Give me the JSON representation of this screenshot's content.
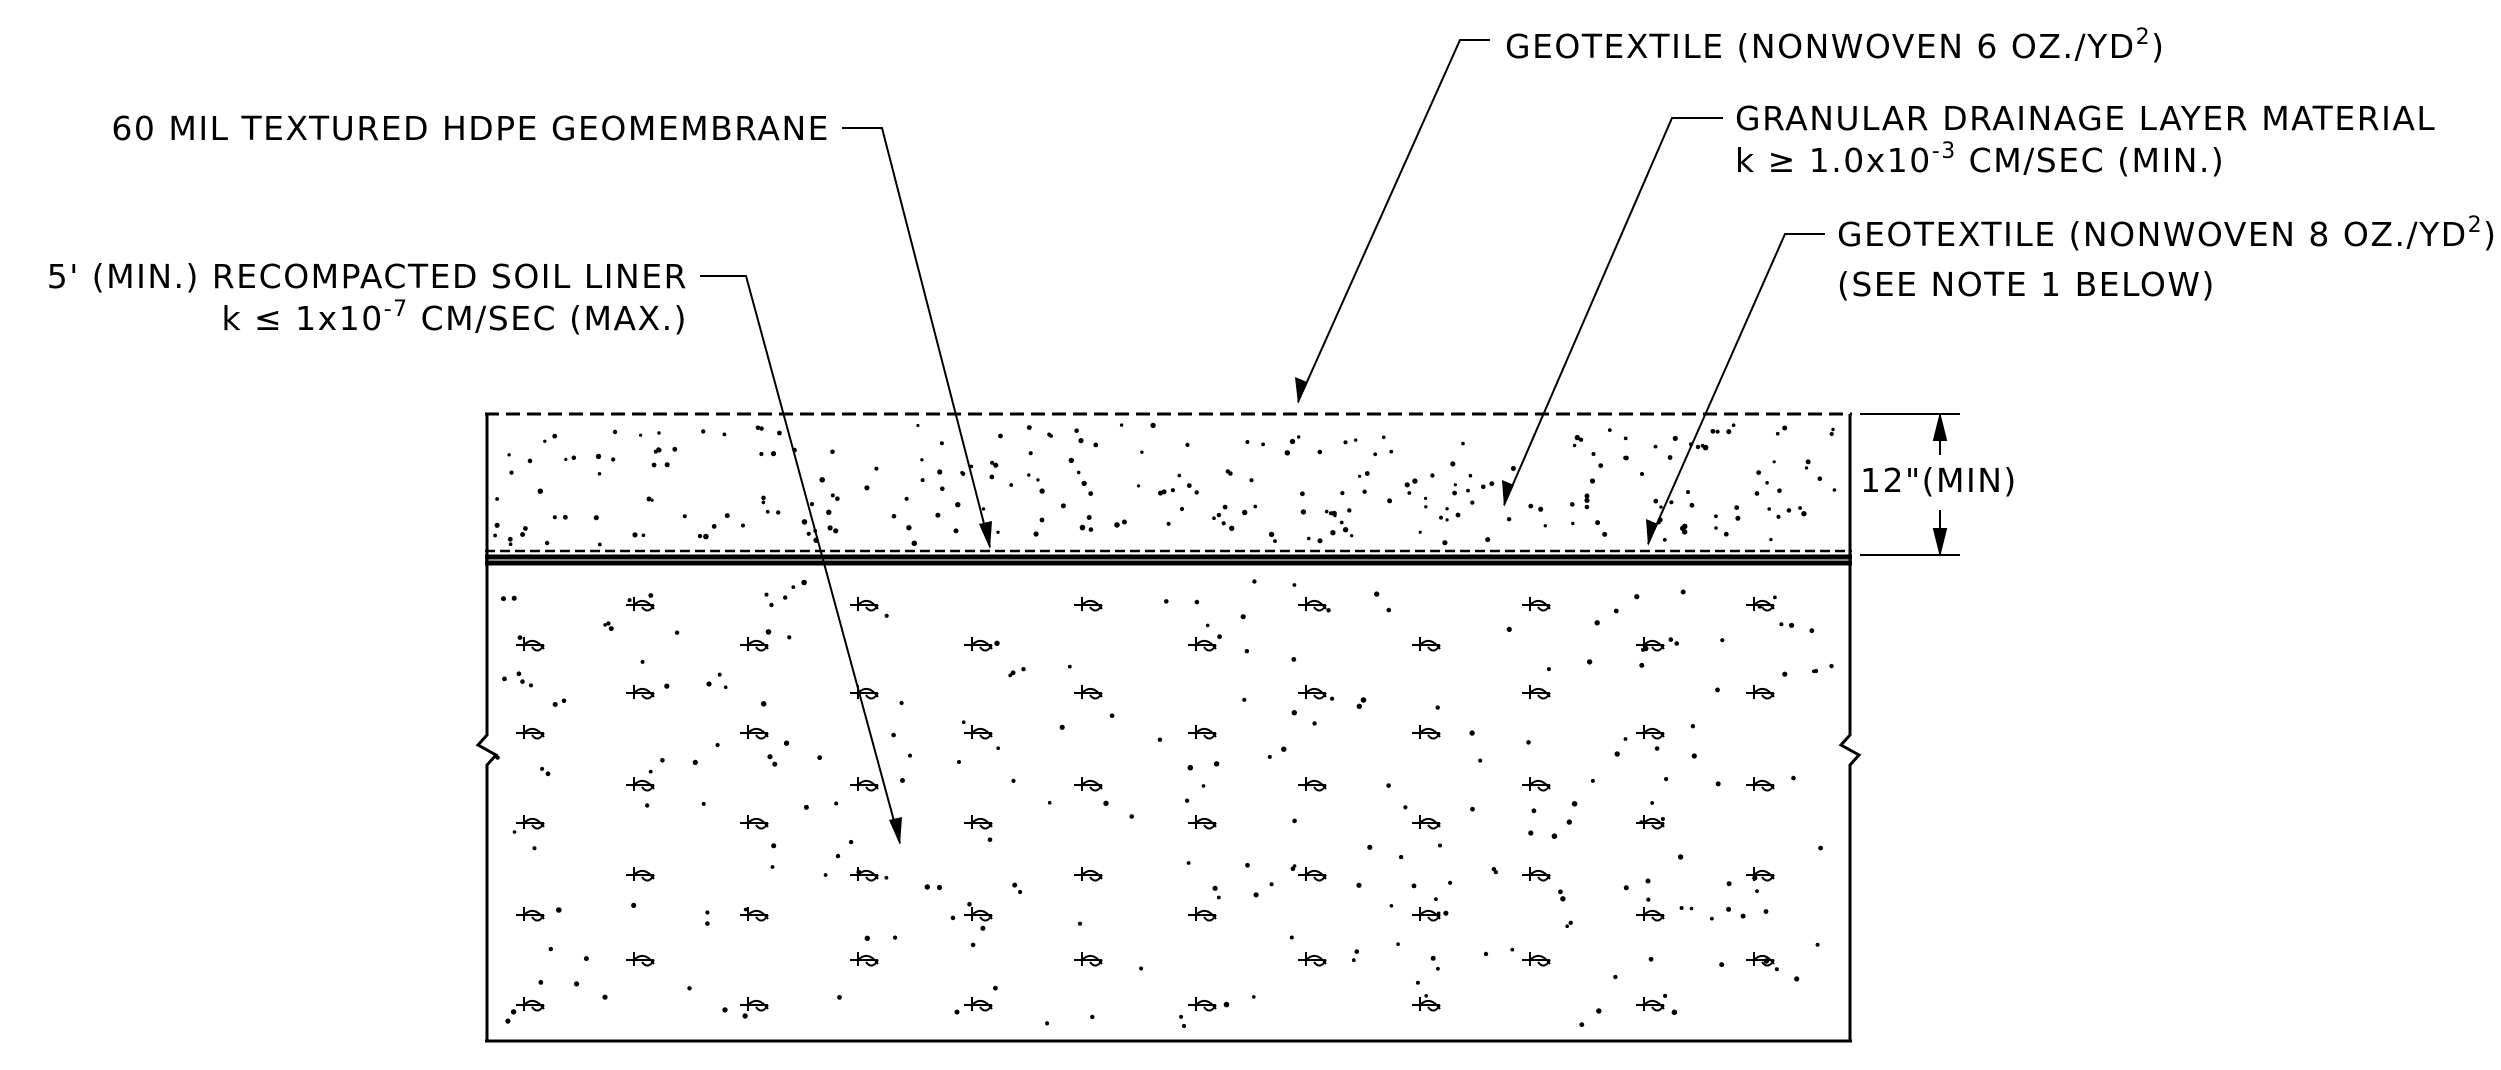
{
  "labels": {
    "geotextile_top": {
      "text": "GEOTEXTILE (NONWOVEN 6 OZ./YD",
      "sup": "2",
      "tail": ")"
    },
    "geomembrane": {
      "text": "60 MIL TEXTURED HDPE GEOMEMBRANE"
    },
    "drainage": {
      "line1": "GRANULAR DRAINAGE LAYER MATERIAL",
      "line2_pre": "k ≥ 1.0x10",
      "line2_sup": "-3",
      "line2_post": " CM/SEC (MIN.)"
    },
    "geotextile_bottom": {
      "line1_pre": "GEOTEXTILE (NONWOVEN 8 OZ./YD",
      "line1_sup": "2",
      "line1_tail": ")",
      "line2": "(SEE NOTE 1 BELOW)"
    },
    "soil_liner": {
      "line1": "5' (MIN.) RECOMPACTED SOIL LINER",
      "line2_pre": "k ≤ 1x10",
      "line2_sup": "-7",
      "line2_post": " CM/SEC (MAX.)"
    },
    "dimension": {
      "text": "12\"(MIN)"
    }
  },
  "colors": {
    "ink": "#000000",
    "paper": "#ffffff"
  }
}
